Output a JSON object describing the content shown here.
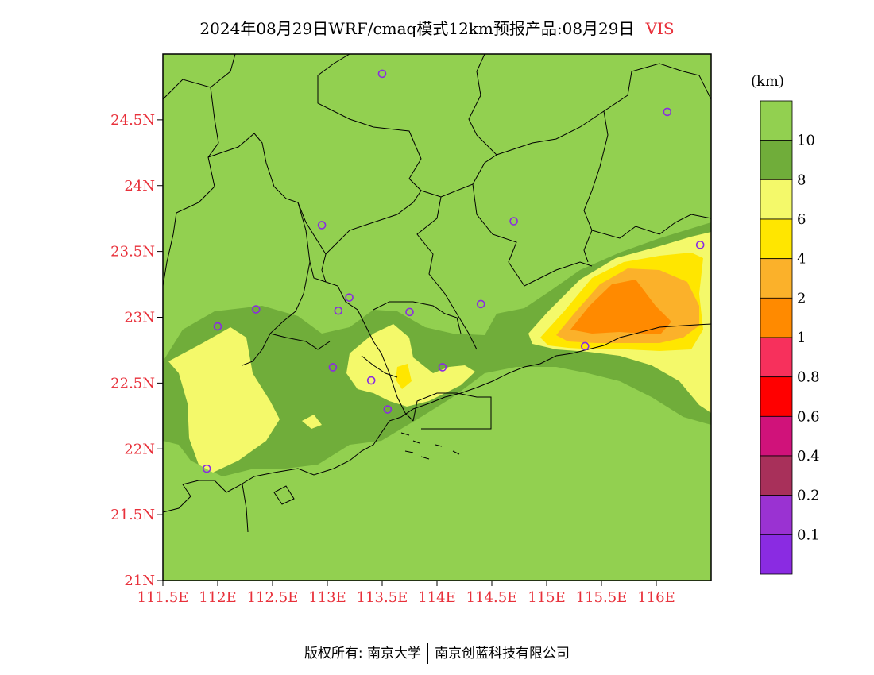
{
  "title": {
    "text": "2024年08月29日WRF/cmaq模式12km预报产品:08月29日",
    "variable": "VIS"
  },
  "map": {
    "lon_range": [
      111.5,
      116.5
    ],
    "lat_range": [
      21,
      25
    ],
    "x_ticks": [
      "111.5E",
      "112E",
      "112.5E",
      "113E",
      "113.5E",
      "114E",
      "114.5E",
      "115E",
      "115.5E",
      "116E"
    ],
    "y_ticks": [
      "21N",
      "21.5N",
      "22N",
      "22.5N",
      "23N",
      "23.5N",
      "24N",
      "24.5N"
    ],
    "background_color": "#92d050",
    "stations": [
      {
        "lon": 113.5,
        "lat": 24.85
      },
      {
        "lon": 116.1,
        "lat": 24.56
      },
      {
        "lon": 112.95,
        "lat": 23.7
      },
      {
        "lon": 114.7,
        "lat": 23.73
      },
      {
        "lon": 116.4,
        "lat": 23.55
      },
      {
        "lon": 113.2,
        "lat": 23.15
      },
      {
        "lon": 112.35,
        "lat": 23.06
      },
      {
        "lon": 113.1,
        "lat": 23.05
      },
      {
        "lon": 113.75,
        "lat": 23.04
      },
      {
        "lon": 114.4,
        "lat": 23.1
      },
      {
        "lon": 112.0,
        "lat": 22.93
      },
      {
        "lon": 115.35,
        "lat": 22.78
      },
      {
        "lon": 113.05,
        "lat": 22.62
      },
      {
        "lon": 114.05,
        "lat": 22.62
      },
      {
        "lon": 113.4,
        "lat": 22.52
      },
      {
        "lon": 113.55,
        "lat": 22.3
      },
      {
        "lon": 111.9,
        "lat": 21.85
      }
    ]
  },
  "colorbar": {
    "unit": "(km)",
    "colors": [
      "#92d050",
      "#70ad3a",
      "#f4f96a",
      "#ffe600",
      "#fbb12a",
      "#ff8a00",
      "#f7305c",
      "#ff0000",
      "#d0127a",
      "#a8305a",
      "#9a32d2",
      "#8a2be2"
    ],
    "labels": [
      "10",
      "8",
      "6",
      "4",
      "2",
      "1",
      "0.8",
      "0.6",
      "0.4",
      "0.2",
      "0.1"
    ]
  },
  "footer": {
    "left": "版权所有: 南京大学",
    "right": "南京创蓝科技有限公司"
  }
}
